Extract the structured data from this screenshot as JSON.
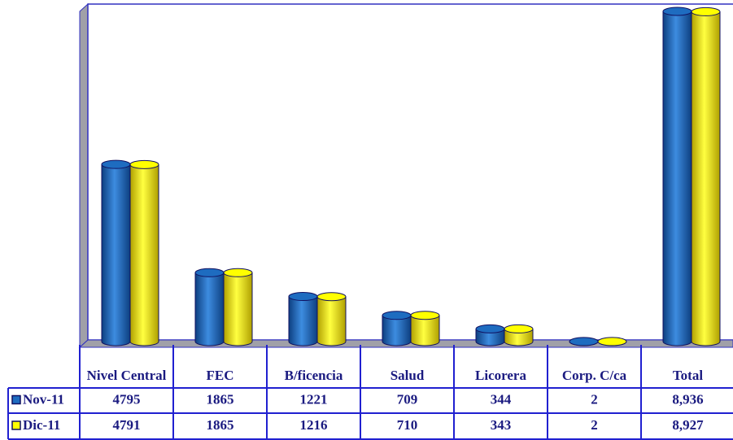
{
  "chart_data": {
    "type": "bar",
    "categories": [
      "Nivel Central",
      "FEC",
      "B/ficencia",
      "Salud",
      "Licorera",
      "Corp. C/ca",
      "Total"
    ],
    "series": [
      {
        "name": "Nov-11",
        "color": "#1e6cc0",
        "values": [
          4795,
          1865,
          1221,
          709,
          344,
          2,
          8936
        ],
        "value_labels": [
          "4795",
          "1865",
          "1221",
          "709",
          "344",
          "2",
          "8,936"
        ]
      },
      {
        "name": "Dic-11",
        "color": "#ffff00",
        "values": [
          4791,
          1865,
          1216,
          710,
          343,
          2,
          8927
        ],
        "value_labels": [
          "4791",
          "1865",
          "1216",
          "710",
          "343",
          "2",
          "8,927"
        ]
      }
    ]
  }
}
